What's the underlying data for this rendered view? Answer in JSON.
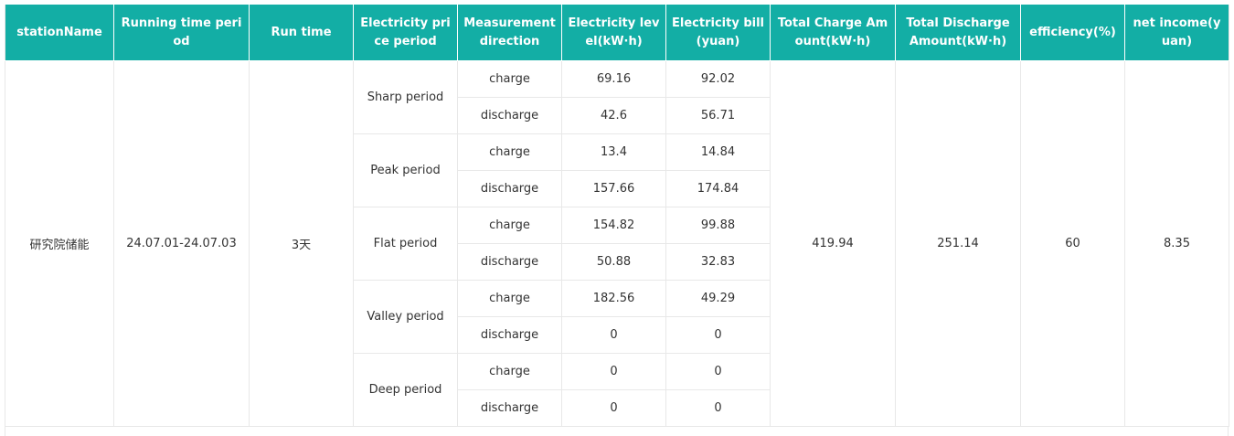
{
  "colors": {
    "header_background": "#13aea5",
    "header_text": "#ffffff",
    "cell_border": "#e8e8e8"
  },
  "table": {
    "headers": [
      "stationName",
      "Running time period",
      "Run time",
      "Electricity price period",
      "Measurement direction",
      "Electricity level(kW·h)",
      "Electricity bill (yuan)",
      "Total Charge Amount(kW·h)",
      "Total Discharge Amount(kW·h)",
      "efficiency(%)",
      "net income(yuan)"
    ],
    "station": {
      "name": "研究院储能",
      "running_period": "24.07.01-24.07.03",
      "run_time": "3天",
      "total_charge": "419.94",
      "total_discharge": "251.14",
      "efficiency": "60",
      "net_income": "8.35"
    },
    "periods": [
      {
        "name": "Sharp period",
        "rows": [
          {
            "direction": "charge",
            "level": "69.16",
            "bill": "92.02"
          },
          {
            "direction": "discharge",
            "level": "42.6",
            "bill": "56.71"
          }
        ]
      },
      {
        "name": "Peak period",
        "rows": [
          {
            "direction": "charge",
            "level": "13.4",
            "bill": "14.84"
          },
          {
            "direction": "discharge",
            "level": "157.66",
            "bill": "174.84"
          }
        ]
      },
      {
        "name": "Flat period",
        "rows": [
          {
            "direction": "charge",
            "level": "154.82",
            "bill": "99.88"
          },
          {
            "direction": "discharge",
            "level": "50.88",
            "bill": "32.83"
          }
        ]
      },
      {
        "name": "Valley period",
        "rows": [
          {
            "direction": "charge",
            "level": "182.56",
            "bill": "49.29"
          },
          {
            "direction": "discharge",
            "level": "0",
            "bill": "0"
          }
        ]
      },
      {
        "name": "Deep period",
        "rows": [
          {
            "direction": "charge",
            "level": "0",
            "bill": "0"
          },
          {
            "direction": "discharge",
            "level": "0",
            "bill": "0"
          }
        ]
      }
    ]
  }
}
